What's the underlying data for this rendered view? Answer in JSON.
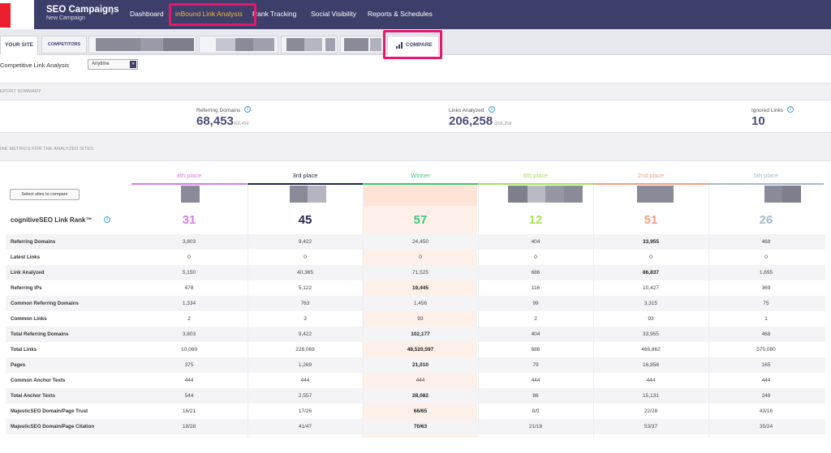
{
  "app": {
    "title": "SEO Campaigns",
    "subtitle": "New Campaign",
    "caret": "▾"
  },
  "nav": [
    {
      "label": "Dashboard",
      "active": false
    },
    {
      "label": "inBound Link Analysis",
      "active": true
    },
    {
      "label": "Rank Tracking",
      "active": false
    },
    {
      "label": "Social Visibility",
      "active": false
    },
    {
      "label": "Reports & Schedules",
      "active": false
    }
  ],
  "tabs": {
    "your_site": "YOUR SITE",
    "competitors": "COMPETITORS",
    "compare": "COMPARE"
  },
  "filter": {
    "label": "Competitive Link Analysis",
    "selected": "Anytime"
  },
  "sections": {
    "summary": "EPORT SUMMARY",
    "metrics": "INK METRICS FOR THE ANALYZED SITES"
  },
  "summary": {
    "referring_domains": {
      "label": "Referring Domains",
      "value": "68,453",
      "total": "/68,454"
    },
    "links_analyzed": {
      "label": "Links Analyzed",
      "value": "206,258",
      "total": "/206,258"
    },
    "ignored_links": {
      "label": "Ignored Links",
      "value": "10"
    }
  },
  "table": {
    "select_button": "Select sites to compare",
    "columns": [
      {
        "place": "4th place",
        "color": "#d37ce6"
      },
      {
        "place": "3rd place",
        "color": "#23264a"
      },
      {
        "place": "Winner",
        "color": "#3cc97a"
      },
      {
        "place": "6th place",
        "color": "#a6e35a"
      },
      {
        "place": "2nd place",
        "color": "#f49f88"
      },
      {
        "place": "5th place",
        "color": "#a8b9d0"
      }
    ],
    "rank": {
      "label": "cognitiveSEO Link Rank™",
      "values": [
        "31",
        "45",
        "57",
        "12",
        "51",
        "26"
      ]
    },
    "rows": [
      {
        "label": "Referring Domains",
        "values": [
          "3,803",
          "9,422",
          "24,450",
          "404",
          "33,955",
          "468"
        ],
        "bold": [
          4
        ]
      },
      {
        "label": "Latest Links",
        "values": [
          "0",
          "0",
          "0",
          "0",
          "0",
          "0"
        ],
        "bold": []
      },
      {
        "label": "Link Analyzed",
        "values": [
          "5,150",
          "40,365",
          "71,525",
          "686",
          "86,837",
          "1,695"
        ],
        "bold": [
          4
        ]
      },
      {
        "label": "Referring IPs",
        "values": [
          "478",
          "5,122",
          "19,445",
          "116",
          "10,427",
          "369"
        ],
        "bold": [
          2
        ]
      },
      {
        "label": "Common Referring Domains",
        "values": [
          "1,334",
          "763",
          "1,456",
          "99",
          "3,315",
          "75"
        ],
        "bold": []
      },
      {
        "label": "Common Links",
        "values": [
          "2",
          "3",
          "93",
          "2",
          "93",
          "1"
        ],
        "bold": []
      },
      {
        "label": "Total Referring Domains",
        "values": [
          "3,803",
          "9,422",
          "102,177",
          "404",
          "33,955",
          "468"
        ],
        "bold": [
          2
        ]
      },
      {
        "label": "Total Links",
        "values": [
          "10,069",
          "228,069",
          "48,520,597",
          "686",
          "466,862",
          "570,080"
        ],
        "bold": [
          2
        ]
      },
      {
        "label": "Pages",
        "values": [
          "375",
          "1,269",
          "21,010",
          "79",
          "16,858",
          "165"
        ],
        "bold": [
          2
        ]
      },
      {
        "label": "Common Anchor Texts",
        "values": [
          "444",
          "444",
          "444",
          "444",
          "444",
          "444"
        ],
        "bold": []
      },
      {
        "label": "Total Anchor Texts",
        "values": [
          "544",
          "2,557",
          "28,082",
          "86",
          "15,131",
          "248"
        ],
        "bold": [
          2
        ]
      },
      {
        "label": "MajesticSEO Domain/Page Trust",
        "values": [
          "16/21",
          "17/26",
          "66/65",
          "8/0",
          "22/28",
          "43/16"
        ],
        "bold": [
          2
        ]
      },
      {
        "label": "MajesticSEO Domain/Page Citation",
        "values": [
          "18/28",
          "41/47",
          "70/63",
          "21/18",
          "53/37",
          "35/24"
        ],
        "bold": [
          2
        ]
      }
    ]
  },
  "icons": {
    "info": "info-icon",
    "compare": "bar-chart-icon"
  },
  "accent": "#f7b731",
  "highlight": "#e6186b",
  "brand": "#3d3e6a"
}
